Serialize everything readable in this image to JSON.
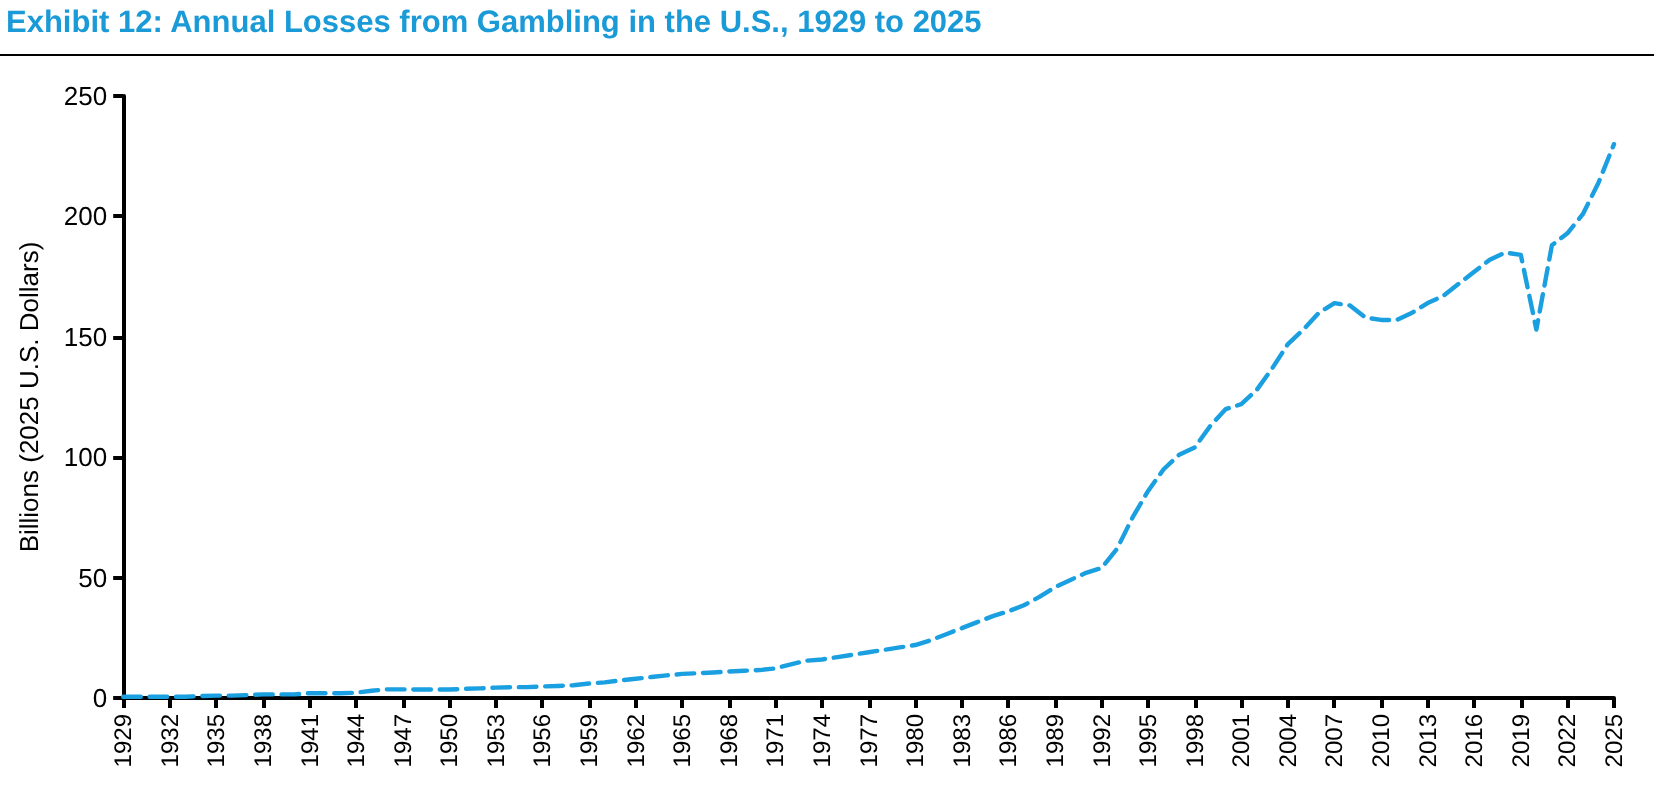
{
  "chart_data": {
    "type": "line",
    "title": "Exhibit 12: Annual Losses from Gambling in the U.S., 1929 to 2025",
    "ylabel": "Billions (2025 U.S. Dollars)",
    "categories": [
      "1929",
      null,
      null,
      "1932",
      null,
      null,
      "1935",
      null,
      null,
      "1938",
      null,
      null,
      "1941",
      null,
      null,
      "1944",
      null,
      null,
      "1947",
      null,
      null,
      "1950",
      null,
      null,
      "1953",
      null,
      null,
      "1956",
      null,
      null,
      "1959",
      null,
      null,
      "1962",
      null,
      null,
      "1965",
      null,
      null,
      "1968",
      null,
      null,
      "1971",
      null,
      null,
      "1974",
      null,
      null,
      "1977",
      null,
      null,
      "1980",
      null,
      null,
      "1983",
      null,
      null,
      "1986",
      null,
      null,
      "1989",
      null,
      null,
      "1992",
      null,
      null,
      "1995",
      null,
      null,
      "1998",
      null,
      null,
      "2001",
      null,
      null,
      "2004",
      null,
      null,
      "2007",
      null,
      null,
      "2010",
      null,
      null,
      "2013",
      null,
      null,
      "2016",
      null,
      null,
      "2019",
      null,
      null,
      "2022",
      null,
      null,
      "2025"
    ],
    "values": [
      0.5,
      0.5,
      0.5,
      0.5,
      0.5,
      0.8,
      1,
      1,
      1.2,
      1.5,
      1.5,
      1.5,
      2,
      2,
      2,
      2.2,
      3,
      3.6,
      3.6,
      3.5,
      3.5,
      3.5,
      3.8,
      4,
      4.3,
      4.5,
      4.5,
      4.8,
      5,
      5.3,
      6,
      6.5,
      7.3,
      8,
      8.7,
      9.4,
      10,
      10.3,
      10.6,
      11,
      11.3,
      11.6,
      12.3,
      14,
      15.5,
      16,
      17,
      18,
      19,
      20,
      21,
      22,
      24,
      26.5,
      29,
      31.5,
      34,
      36,
      38.5,
      42,
      46,
      49,
      52,
      54,
      62,
      75,
      86,
      95,
      101,
      104,
      113,
      120,
      122,
      128,
      137,
      147,
      153,
      160,
      164,
      163,
      158,
      157,
      157,
      160,
      164,
      167,
      172,
      177,
      182,
      185,
      184,
      153,
      188,
      193,
      201,
      214,
      230
    ],
    "color": "#1a9fe0",
    "line_style": "dashed",
    "marker": "none",
    "ylim": [
      0,
      250
    ],
    "yticks": [
      0,
      50,
      100,
      150,
      200,
      250
    ]
  }
}
